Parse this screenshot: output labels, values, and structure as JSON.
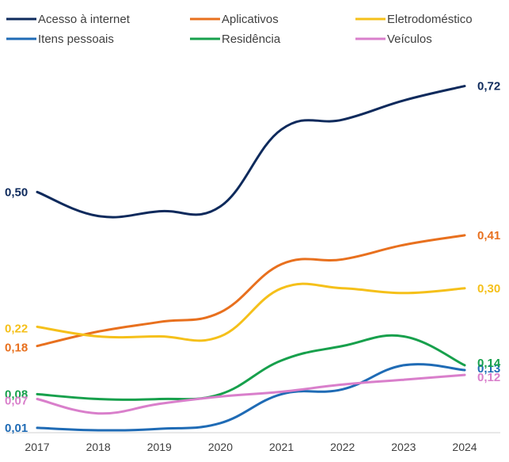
{
  "chart_data": {
    "type": "line",
    "title": "",
    "xlabel": "",
    "ylabel": "",
    "categories": [
      "2017",
      "2018",
      "2019",
      "2020",
      "2021",
      "2022",
      "2023",
      "2024"
    ],
    "ylim": [
      0,
      0.8
    ],
    "grid": false,
    "legend_position": "top",
    "series": [
      {
        "name": "Acesso à internet",
        "color": "#0E2A5C",
        "values": [
          0.5,
          0.45,
          0.46,
          0.47,
          0.63,
          0.65,
          0.69,
          0.72
        ],
        "start_label": "0,50",
        "end_label": "0,72"
      },
      {
        "name": "Aplicativos",
        "color": "#E8701E",
        "values": [
          0.18,
          0.21,
          0.23,
          0.25,
          0.35,
          0.36,
          0.39,
          0.41
        ],
        "start_label": "0,18",
        "end_label": "0,41"
      },
      {
        "name": "Eletrodoméstico",
        "color": "#F5C01A",
        "values": [
          0.22,
          0.2,
          0.2,
          0.2,
          0.3,
          0.3,
          0.29,
          0.3
        ],
        "start_label": "0,22",
        "end_label": "0,30"
      },
      {
        "name": "Itens pessoais",
        "color": "#1F6BB5",
        "values": [
          0.01,
          0.005,
          0.008,
          0.02,
          0.08,
          0.09,
          0.14,
          0.13
        ],
        "start_label": "0,01",
        "end_label": "0,13"
      },
      {
        "name": "Residência",
        "color": "#17A04C",
        "values": [
          0.08,
          0.07,
          0.07,
          0.08,
          0.15,
          0.18,
          0.2,
          0.14
        ],
        "start_label": "0,08",
        "end_label": "0,14"
      },
      {
        "name": "Veículos",
        "color": "#D97FCB",
        "values": [
          0.07,
          0.04,
          0.06,
          0.075,
          0.085,
          0.1,
          0.11,
          0.12
        ],
        "start_label": "0,07",
        "end_label": "0,12"
      }
    ]
  }
}
